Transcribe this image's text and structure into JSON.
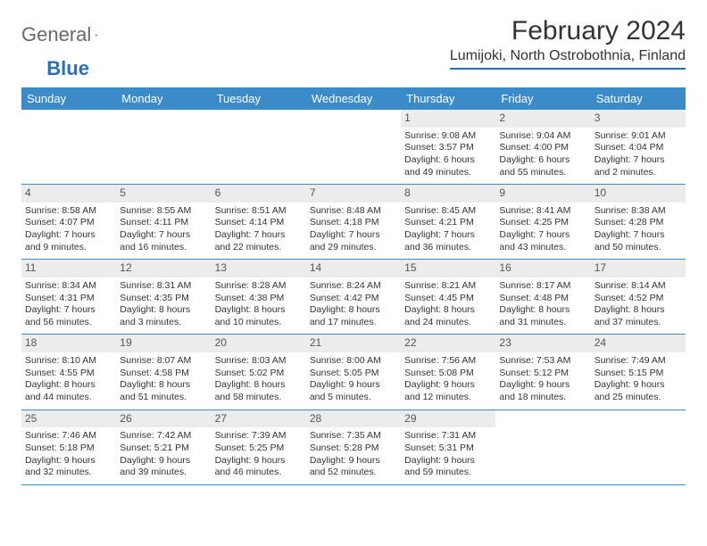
{
  "logo": {
    "general": "General",
    "blue": "Blue"
  },
  "title": "February 2024",
  "location": "Lumijoki, North Ostrobothnia, Finland",
  "colors": {
    "header_bg": "#3b8bc8",
    "header_text": "#ffffff",
    "daynum_bg": "#ececec",
    "rule": "#3b8bc8",
    "logo_gray": "#6a6a6a",
    "logo_blue": "#2a6fb5"
  },
  "day_names": [
    "Sunday",
    "Monday",
    "Tuesday",
    "Wednesday",
    "Thursday",
    "Friday",
    "Saturday"
  ],
  "weeks": [
    [
      {
        "empty": true
      },
      {
        "empty": true
      },
      {
        "empty": true
      },
      {
        "empty": true
      },
      {
        "num": "1",
        "sunrise": "Sunrise: 9:08 AM",
        "sunset": "Sunset: 3:57 PM",
        "day1": "Daylight: 6 hours",
        "day2": "and 49 minutes."
      },
      {
        "num": "2",
        "sunrise": "Sunrise: 9:04 AM",
        "sunset": "Sunset: 4:00 PM",
        "day1": "Daylight: 6 hours",
        "day2": "and 55 minutes."
      },
      {
        "num": "3",
        "sunrise": "Sunrise: 9:01 AM",
        "sunset": "Sunset: 4:04 PM",
        "day1": "Daylight: 7 hours",
        "day2": "and 2 minutes."
      }
    ],
    [
      {
        "num": "4",
        "sunrise": "Sunrise: 8:58 AM",
        "sunset": "Sunset: 4:07 PM",
        "day1": "Daylight: 7 hours",
        "day2": "and 9 minutes."
      },
      {
        "num": "5",
        "sunrise": "Sunrise: 8:55 AM",
        "sunset": "Sunset: 4:11 PM",
        "day1": "Daylight: 7 hours",
        "day2": "and 16 minutes."
      },
      {
        "num": "6",
        "sunrise": "Sunrise: 8:51 AM",
        "sunset": "Sunset: 4:14 PM",
        "day1": "Daylight: 7 hours",
        "day2": "and 22 minutes."
      },
      {
        "num": "7",
        "sunrise": "Sunrise: 8:48 AM",
        "sunset": "Sunset: 4:18 PM",
        "day1": "Daylight: 7 hours",
        "day2": "and 29 minutes."
      },
      {
        "num": "8",
        "sunrise": "Sunrise: 8:45 AM",
        "sunset": "Sunset: 4:21 PM",
        "day1": "Daylight: 7 hours",
        "day2": "and 36 minutes."
      },
      {
        "num": "9",
        "sunrise": "Sunrise: 8:41 AM",
        "sunset": "Sunset: 4:25 PM",
        "day1": "Daylight: 7 hours",
        "day2": "and 43 minutes."
      },
      {
        "num": "10",
        "sunrise": "Sunrise: 8:38 AM",
        "sunset": "Sunset: 4:28 PM",
        "day1": "Daylight: 7 hours",
        "day2": "and 50 minutes."
      }
    ],
    [
      {
        "num": "11",
        "sunrise": "Sunrise: 8:34 AM",
        "sunset": "Sunset: 4:31 PM",
        "day1": "Daylight: 7 hours",
        "day2": "and 56 minutes."
      },
      {
        "num": "12",
        "sunrise": "Sunrise: 8:31 AM",
        "sunset": "Sunset: 4:35 PM",
        "day1": "Daylight: 8 hours",
        "day2": "and 3 minutes."
      },
      {
        "num": "13",
        "sunrise": "Sunrise: 8:28 AM",
        "sunset": "Sunset: 4:38 PM",
        "day1": "Daylight: 8 hours",
        "day2": "and 10 minutes."
      },
      {
        "num": "14",
        "sunrise": "Sunrise: 8:24 AM",
        "sunset": "Sunset: 4:42 PM",
        "day1": "Daylight: 8 hours",
        "day2": "and 17 minutes."
      },
      {
        "num": "15",
        "sunrise": "Sunrise: 8:21 AM",
        "sunset": "Sunset: 4:45 PM",
        "day1": "Daylight: 8 hours",
        "day2": "and 24 minutes."
      },
      {
        "num": "16",
        "sunrise": "Sunrise: 8:17 AM",
        "sunset": "Sunset: 4:48 PM",
        "day1": "Daylight: 8 hours",
        "day2": "and 31 minutes."
      },
      {
        "num": "17",
        "sunrise": "Sunrise: 8:14 AM",
        "sunset": "Sunset: 4:52 PM",
        "day1": "Daylight: 8 hours",
        "day2": "and 37 minutes."
      }
    ],
    [
      {
        "num": "18",
        "sunrise": "Sunrise: 8:10 AM",
        "sunset": "Sunset: 4:55 PM",
        "day1": "Daylight: 8 hours",
        "day2": "and 44 minutes."
      },
      {
        "num": "19",
        "sunrise": "Sunrise: 8:07 AM",
        "sunset": "Sunset: 4:58 PM",
        "day1": "Daylight: 8 hours",
        "day2": "and 51 minutes."
      },
      {
        "num": "20",
        "sunrise": "Sunrise: 8:03 AM",
        "sunset": "Sunset: 5:02 PM",
        "day1": "Daylight: 8 hours",
        "day2": "and 58 minutes."
      },
      {
        "num": "21",
        "sunrise": "Sunrise: 8:00 AM",
        "sunset": "Sunset: 5:05 PM",
        "day1": "Daylight: 9 hours",
        "day2": "and 5 minutes."
      },
      {
        "num": "22",
        "sunrise": "Sunrise: 7:56 AM",
        "sunset": "Sunset: 5:08 PM",
        "day1": "Daylight: 9 hours",
        "day2": "and 12 minutes."
      },
      {
        "num": "23",
        "sunrise": "Sunrise: 7:53 AM",
        "sunset": "Sunset: 5:12 PM",
        "day1": "Daylight: 9 hours",
        "day2": "and 18 minutes."
      },
      {
        "num": "24",
        "sunrise": "Sunrise: 7:49 AM",
        "sunset": "Sunset: 5:15 PM",
        "day1": "Daylight: 9 hours",
        "day2": "and 25 minutes."
      }
    ],
    [
      {
        "num": "25",
        "sunrise": "Sunrise: 7:46 AM",
        "sunset": "Sunset: 5:18 PM",
        "day1": "Daylight: 9 hours",
        "day2": "and 32 minutes."
      },
      {
        "num": "26",
        "sunrise": "Sunrise: 7:42 AM",
        "sunset": "Sunset: 5:21 PM",
        "day1": "Daylight: 9 hours",
        "day2": "and 39 minutes."
      },
      {
        "num": "27",
        "sunrise": "Sunrise: 7:39 AM",
        "sunset": "Sunset: 5:25 PM",
        "day1": "Daylight: 9 hours",
        "day2": "and 46 minutes."
      },
      {
        "num": "28",
        "sunrise": "Sunrise: 7:35 AM",
        "sunset": "Sunset: 5:28 PM",
        "day1": "Daylight: 9 hours",
        "day2": "and 52 minutes."
      },
      {
        "num": "29",
        "sunrise": "Sunrise: 7:31 AM",
        "sunset": "Sunset: 5:31 PM",
        "day1": "Daylight: 9 hours",
        "day2": "and 59 minutes."
      },
      {
        "empty": true
      },
      {
        "empty": true
      }
    ]
  ]
}
